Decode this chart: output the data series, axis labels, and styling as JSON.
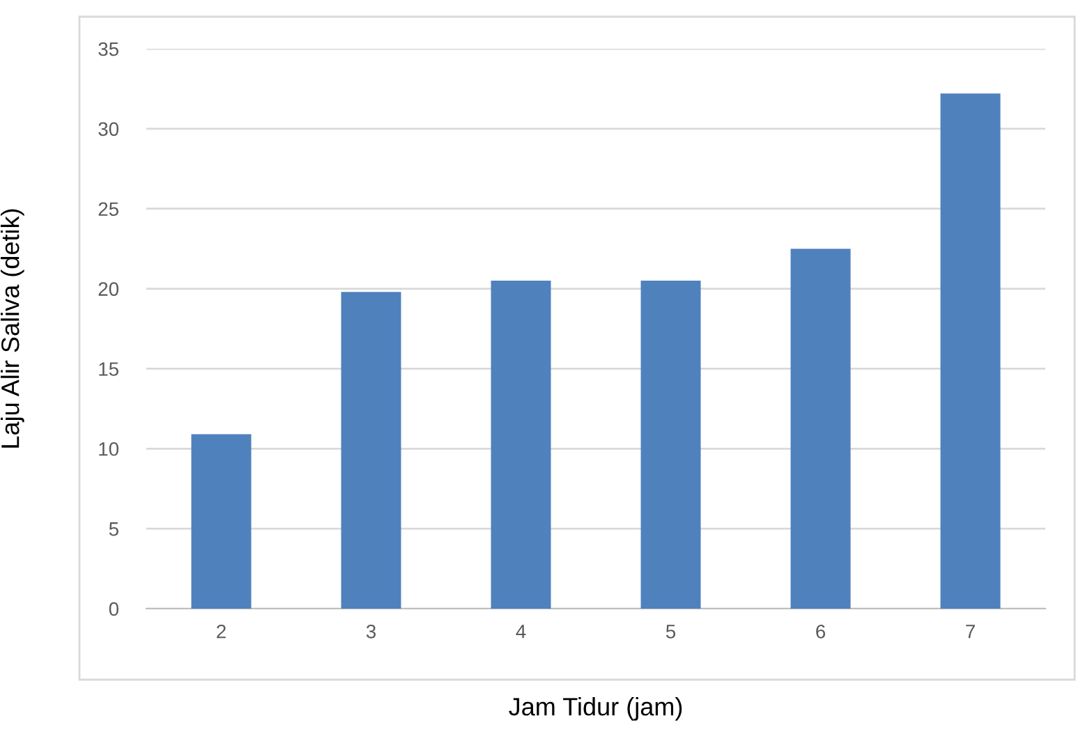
{
  "chart_data": {
    "type": "bar",
    "xlabel": "Jam Tidur (jam)",
    "ylabel": "Laju Alir Saliva (detik)",
    "categories": [
      "2",
      "3",
      "4",
      "5",
      "6",
      "7"
    ],
    "values": [
      10.9,
      19.8,
      20.5,
      20.5,
      22.5,
      32.2
    ],
    "color": "#4f81bd",
    "ylim": [
      0,
      35
    ],
    "yticks": [
      0,
      5,
      10,
      15,
      20,
      25,
      30,
      35
    ],
    "grid": "y",
    "legend": false
  }
}
